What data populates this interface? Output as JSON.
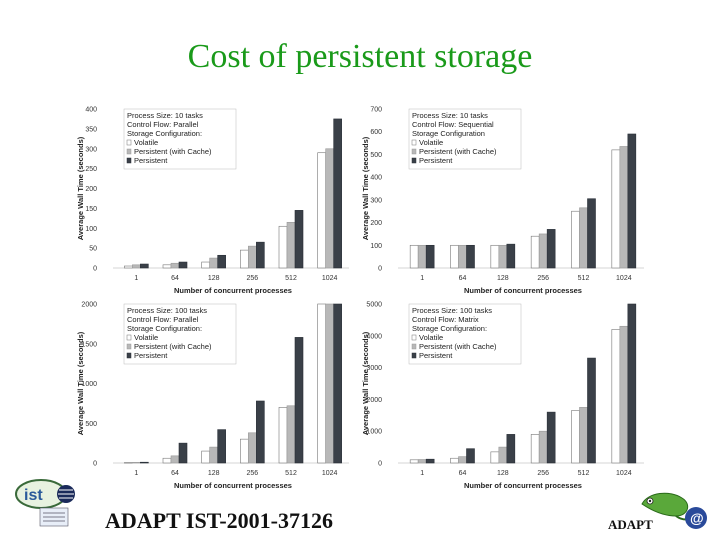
{
  "slide": {
    "title": "Cost of persistent storage",
    "footer_left": "ADAPT IST-2001-37126",
    "footer_right": "ADAPT"
  },
  "colors": {
    "title": "#1a9a1a",
    "volatile": "#ffffff",
    "persistent_cache": "#b8b8b8",
    "persistent": "#3a4048"
  },
  "chart_data": [
    {
      "type": "bar",
      "ylabel": "Average Wall Time (seconds)",
      "xlabel": "Number of concurrent processes",
      "categories": [
        "1",
        "64",
        "128",
        "256",
        "512",
        "1024"
      ],
      "ylim": [
        0,
        400
      ],
      "yticks": [
        0,
        50,
        100,
        150,
        200,
        250,
        300,
        350,
        400
      ],
      "legend_lines": [
        "Process Size: 10 tasks",
        "Control Flow: Parallel",
        "Storage Configuration:"
      ],
      "legend_position": "top-left",
      "series": [
        {
          "name": "Volatile",
          "values": [
            5,
            8,
            15,
            45,
            105,
            290
          ]
        },
        {
          "name": "Persistent (with Cache)",
          "values": [
            8,
            12,
            25,
            55,
            115,
            300
          ]
        },
        {
          "name": "Persistent",
          "values": [
            10,
            15,
            32,
            65,
            145,
            375
          ]
        }
      ]
    },
    {
      "type": "bar",
      "ylabel": "Average Wall Time (seconds)",
      "xlabel": "Number of concurrent processes",
      "categories": [
        "1",
        "64",
        "128",
        "256",
        "512",
        "1024"
      ],
      "ylim": [
        0,
        700
      ],
      "yticks": [
        0,
        100,
        200,
        300,
        400,
        500,
        600,
        700
      ],
      "legend_lines": [
        "Process Size: 10 tasks",
        "Control Flow: Sequential",
        "Storage Configuration"
      ],
      "legend_position": "top-left",
      "series": [
        {
          "name": "Volatile",
          "values": [
            100,
            100,
            100,
            140,
            250,
            520
          ]
        },
        {
          "name": "Persistent (with Cache)",
          "values": [
            100,
            100,
            100,
            150,
            265,
            535
          ]
        },
        {
          "name": "Persistent",
          "values": [
            100,
            100,
            105,
            170,
            305,
            590
          ]
        }
      ]
    },
    {
      "type": "bar",
      "ylabel": "Average Wall Time (seconds)",
      "xlabel": "Number of concurrent processes",
      "categories": [
        "1",
        "64",
        "128",
        "256",
        "512",
        "1024"
      ],
      "ylim": [
        0,
        2000
      ],
      "yticks": [
        0,
        500,
        1000,
        1500,
        2000
      ],
      "legend_lines": [
        "Process Size: 100 tasks",
        "Control Flow: Parallel",
        "Storage Configuration:"
      ],
      "legend_position": "top-left",
      "series": [
        {
          "name": "Volatile",
          "values": [
            5,
            60,
            150,
            300,
            700,
            2000
          ]
        },
        {
          "name": "Persistent (with Cache)",
          "values": [
            8,
            90,
            200,
            380,
            720,
            2000
          ]
        },
        {
          "name": "Persistent",
          "values": [
            10,
            250,
            420,
            780,
            1580,
            2000
          ]
        }
      ]
    },
    {
      "type": "bar",
      "ylabel": "Average Wall Time (seconds)",
      "xlabel": "Number of concurrent processes",
      "categories": [
        "1",
        "64",
        "128",
        "256",
        "512",
        "1024"
      ],
      "ylim": [
        0,
        5000
      ],
      "yticks": [
        0,
        1000,
        2000,
        3000,
        4000,
        5000
      ],
      "legend_lines": [
        "Process Size: 100 tasks",
        "Control Flow: Matrix",
        "Storage Configuration:"
      ],
      "legend_position": "top-left",
      "series": [
        {
          "name": "Volatile",
          "values": [
            100,
            150,
            350,
            900,
            1650,
            4200
          ]
        },
        {
          "name": "Persistent (with Cache)",
          "values": [
            110,
            200,
            500,
            1000,
            1750,
            4300
          ]
        },
        {
          "name": "Persistent",
          "values": [
            120,
            450,
            900,
            1600,
            3300,
            5000
          ]
        }
      ]
    }
  ]
}
